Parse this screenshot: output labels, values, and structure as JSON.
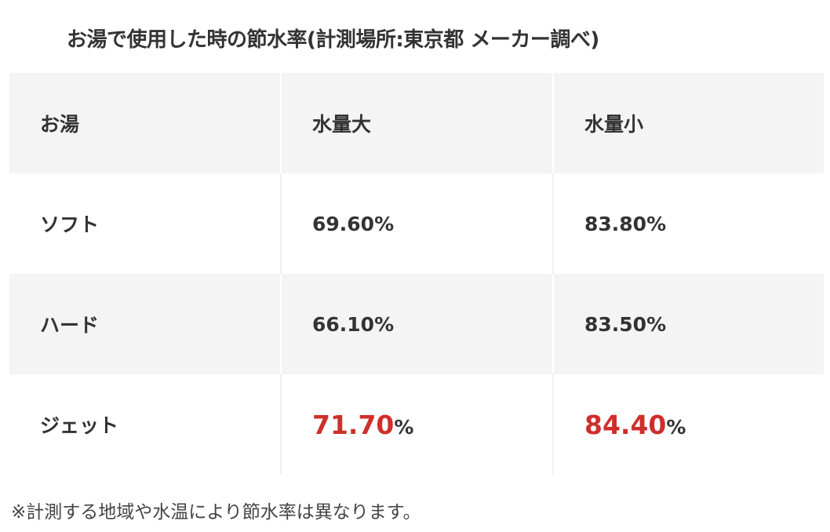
{
  "title": "お湯で使用した時の節水率(計測場所:東京都 メーカー調べ)",
  "table": {
    "headers": [
      "お湯",
      "水量大",
      "水量小"
    ],
    "rows": [
      {
        "label": "ソフト",
        "large": "69.60%",
        "small": "83.80%"
      },
      {
        "label": "ハード",
        "large": "66.10%",
        "small": "83.50%"
      },
      {
        "label": "ジェット",
        "large": "71.70",
        "large_unit": "%",
        "small": "84.40",
        "small_unit": "%"
      }
    ]
  },
  "highlight_color": "#cf2f2b",
  "footnote": "※計測する地域や水温により節水率は異なります。"
}
